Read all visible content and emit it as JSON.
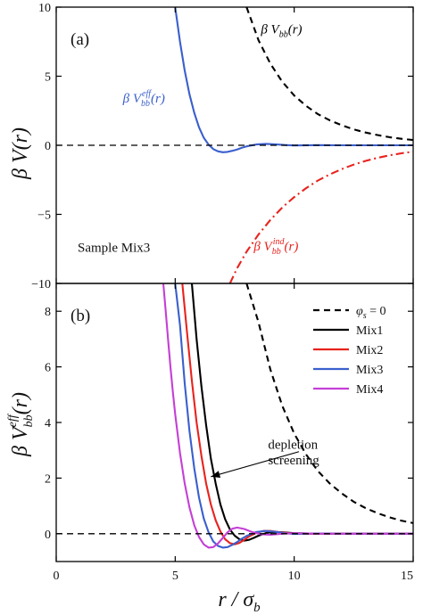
{
  "chart_data": [
    {
      "panel": "(a)",
      "type": "line",
      "ylabel": "β V(r)",
      "ylim": [
        -10,
        10
      ],
      "xlim": [
        0,
        15
      ],
      "yticks": [
        -10,
        -5,
        0,
        5,
        10
      ],
      "xticks": [
        0,
        5,
        10,
        15
      ],
      "grid": false,
      "annotations": [
        {
          "text": "Sample Mix3",
          "x": 0.9,
          "y": -7.7
        },
        {
          "text": "β V_bb(r)",
          "x": 8.6,
          "y": 8.1
        },
        {
          "text": "β V_bb^eff(r)",
          "x": 2.8,
          "y": 3.1
        },
        {
          "text": "β V_bb^ind(r)",
          "x": 8.3,
          "y": -7.6
        }
      ],
      "series": [
        {
          "name": "β V_bb(r)",
          "color": "#000000",
          "dash": "dashed",
          "x": [
            8.0,
            8.5,
            9.0,
            9.5,
            10.0,
            10.5,
            11.0,
            11.5,
            12.0,
            12.5,
            13.0,
            13.5,
            14.0,
            14.5,
            15.0
          ],
          "y": [
            10.0,
            7.6,
            5.9,
            4.6,
            3.6,
            2.85,
            2.25,
            1.8,
            1.45,
            1.15,
            0.92,
            0.74,
            0.59,
            0.47,
            0.38
          ]
        },
        {
          "name": "β V_bb^eff(r)",
          "color": "#3a5fcd",
          "dash": "solid",
          "x": [
            5.0,
            5.2,
            5.4,
            5.6,
            5.8,
            6.0,
            6.2,
            6.4,
            6.6,
            6.8,
            7.0,
            7.2,
            7.4,
            7.6,
            7.8,
            8.0,
            8.4,
            8.8,
            9.2,
            9.6,
            10.0,
            11.0,
            12.0,
            13.0,
            14.0,
            15.0
          ],
          "y": [
            10.0,
            7.5,
            5.4,
            3.7,
            2.35,
            1.3,
            0.55,
            0.05,
            -0.28,
            -0.44,
            -0.5,
            -0.48,
            -0.4,
            -0.3,
            -0.18,
            -0.08,
            0.06,
            0.1,
            0.07,
            0.02,
            -0.01,
            0.01,
            0.0,
            0.0,
            0.0,
            0.0
          ]
        },
        {
          "name": "β V_bb^ind(r)",
          "color": "#e8231e",
          "dash": "dashdot",
          "x": [
            7.3,
            7.6,
            8.0,
            8.5,
            9.0,
            9.5,
            10.0,
            10.5,
            11.0,
            11.5,
            12.0,
            12.5,
            13.0,
            13.5,
            14.0,
            14.5,
            15.0
          ],
          "y": [
            -10.0,
            -8.9,
            -7.7,
            -6.45,
            -5.4,
            -4.5,
            -3.75,
            -3.1,
            -2.55,
            -2.1,
            -1.72,
            -1.4,
            -1.13,
            -0.91,
            -0.73,
            -0.58,
            -0.46
          ]
        },
        {
          "name": "zero",
          "color": "#000000",
          "dash": "dashed",
          "x": [
            0,
            15
          ],
          "y": [
            0,
            0
          ]
        }
      ]
    },
    {
      "panel": "(b)",
      "type": "line",
      "ylabel": "β V_bb^eff(r)",
      "xlabel": "r / σ_b",
      "ylim": [
        -1,
        9
      ],
      "xlim": [
        0,
        15
      ],
      "yticks": [
        0,
        2,
        4,
        6,
        8
      ],
      "xticks": [
        0,
        5,
        10,
        15
      ],
      "xtick_labels": [
        "0",
        "5",
        "10",
        "15"
      ],
      "grid": false,
      "legend_position": "top-right",
      "annotations": [
        {
          "text": "depletion",
          "x": 8.9,
          "y": 3.05
        },
        {
          "text": "screening",
          "x": 8.9,
          "y": 2.5
        }
      ],
      "arrow": {
        "from": [
          10.2,
          2.95
        ],
        "to": [
          6.5,
          2.05
        ]
      },
      "series": [
        {
          "name": "φ_s = 0",
          "color": "#000000",
          "dash": "dashed",
          "x": [
            8.0,
            8.5,
            9.0,
            9.5,
            10.0,
            10.5,
            11.0,
            11.5,
            12.0,
            12.5,
            13.0,
            13.5,
            14.0,
            14.5,
            15.0
          ],
          "y": [
            9.0,
            7.6,
            5.9,
            4.6,
            3.6,
            2.85,
            2.25,
            1.8,
            1.45,
            1.15,
            0.92,
            0.74,
            0.59,
            0.47,
            0.38
          ]
        },
        {
          "name": "Mix1",
          "color": "#000000",
          "dash": "solid",
          "x": [
            5.7,
            5.9,
            6.1,
            6.3,
            6.5,
            6.7,
            6.9,
            7.1,
            7.3,
            7.5,
            7.7,
            7.9,
            8.1,
            8.3,
            8.5,
            8.8,
            9.1,
            9.5,
            10.0,
            11.0,
            12.0,
            13.0,
            14.0,
            15.0
          ],
          "y": [
            9.0,
            7.0,
            5.3,
            3.9,
            2.7,
            1.8,
            1.05,
            0.52,
            0.15,
            -0.07,
            -0.2,
            -0.25,
            -0.22,
            -0.15,
            -0.07,
            0.02,
            0.06,
            0.05,
            0.02,
            0.0,
            0.0,
            0.0,
            0.0,
            0.0
          ]
        },
        {
          "name": "Mix2",
          "color": "#e8231e",
          "dash": "solid",
          "x": [
            5.3,
            5.5,
            5.7,
            5.9,
            6.1,
            6.3,
            6.5,
            6.7,
            6.9,
            7.1,
            7.3,
            7.5,
            7.7,
            7.9,
            8.1,
            8.4,
            8.7,
            9.0,
            9.4,
            10.0,
            11.0,
            12.0,
            13.0,
            14.0,
            15.0
          ],
          "y": [
            9.0,
            7.2,
            5.5,
            4.0,
            2.8,
            1.8,
            1.05,
            0.48,
            0.08,
            -0.2,
            -0.34,
            -0.38,
            -0.33,
            -0.22,
            -0.1,
            0.03,
            0.1,
            0.1,
            0.05,
            0.0,
            0.0,
            0.0,
            0.0,
            0.0,
            0.0
          ]
        },
        {
          "name": "Mix3",
          "color": "#3a5fcd",
          "dash": "solid",
          "x": [
            5.0,
            5.2,
            5.4,
            5.6,
            5.8,
            6.0,
            6.2,
            6.4,
            6.6,
            6.8,
            7.0,
            7.2,
            7.4,
            7.6,
            7.8,
            8.0,
            8.4,
            8.8,
            9.2,
            9.6,
            10.0,
            11.0,
            12.0,
            13.0,
            14.0,
            15.0
          ],
          "y": [
            9.0,
            7.5,
            5.4,
            3.7,
            2.35,
            1.3,
            0.55,
            0.05,
            -0.28,
            -0.44,
            -0.5,
            -0.48,
            -0.4,
            -0.3,
            -0.18,
            -0.08,
            0.06,
            0.1,
            0.07,
            0.02,
            -0.01,
            0.01,
            0.0,
            0.0,
            0.0,
            0.0
          ]
        },
        {
          "name": "Mix4",
          "color": "#c43fd6",
          "dash": "solid",
          "x": [
            4.5,
            4.6,
            4.7,
            4.8,
            4.9,
            5.0,
            5.2,
            5.4,
            5.6,
            5.8,
            6.0,
            6.2,
            6.4,
            6.6,
            6.8,
            7.0,
            7.2,
            7.4,
            7.6,
            7.9,
            8.2,
            8.6,
            9.0,
            9.5,
            10.0,
            11.0,
            12.0,
            13.0,
            14.0,
            15.0
          ],
          "y": [
            9.0,
            8.0,
            7.0,
            6.0,
            5.1,
            4.3,
            2.9,
            1.8,
            0.95,
            0.3,
            -0.12,
            -0.38,
            -0.5,
            -0.48,
            -0.35,
            -0.15,
            0.05,
            0.18,
            0.22,
            0.17,
            0.07,
            -0.02,
            -0.04,
            0.0,
            0.02,
            0.0,
            0.0,
            0.0,
            0.0,
            0.0
          ]
        },
        {
          "name": "zero",
          "color": "#000000",
          "dash": "dashed",
          "x": [
            0,
            15
          ],
          "y": [
            0,
            0
          ]
        }
      ]
    }
  ]
}
